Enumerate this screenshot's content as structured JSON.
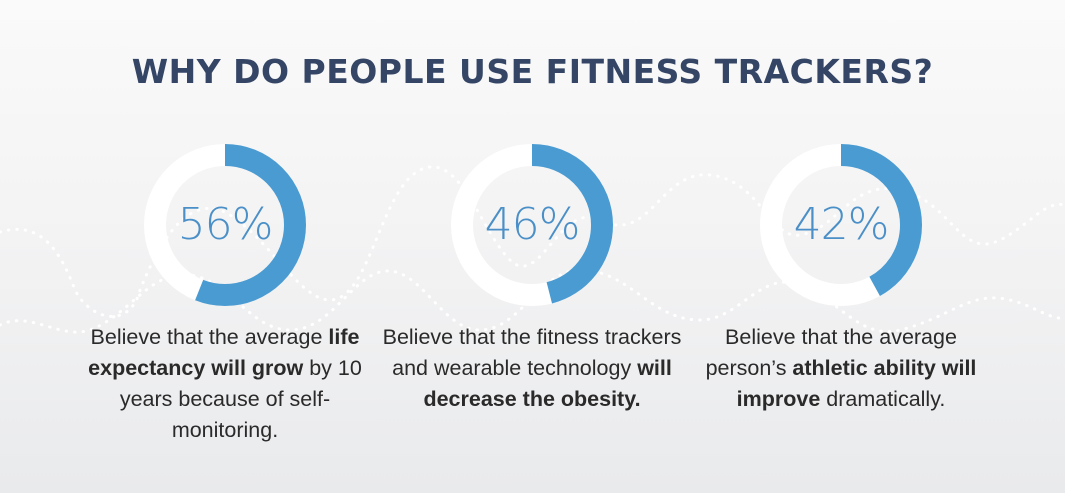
{
  "title": "WHY DO PEOPLE USE FITNESS TRACKERS?",
  "colors": {
    "title": "#344565",
    "ring_track": "#ffffff",
    "ring_fill": "#4a9bd1",
    "percent_text": "#4a8fc7",
    "body_text": "#2a2a2a",
    "background": "#f2f2f3"
  },
  "stats": [
    {
      "label": "56%",
      "desc": [
        {
          "t": "Believe that the average ",
          "b": false
        },
        {
          "t": "life expectancy will grow",
          "b": true
        },
        {
          "t": " by 10 years because of self-monitoring.",
          "b": false
        }
      ]
    },
    {
      "label": "46%",
      "desc": [
        {
          "t": "Believe that the fitness trackers and wearable technology ",
          "b": false
        },
        {
          "t": "will decrease the obesity.",
          "b": true
        }
      ]
    },
    {
      "label": "42%",
      "desc": [
        {
          "t": "Believe that the average person’s ",
          "b": false
        },
        {
          "t": "athletic ability will improve",
          "b": true
        },
        {
          "t": " dramatically.",
          "b": false
        }
      ]
    }
  ],
  "chart_data": {
    "type": "pie",
    "title": "WHY DO PEOPLE USE FITNESS TRACKERS?",
    "categories": [
      "56%",
      "46%",
      "42%"
    ],
    "values": [
      56,
      46,
      42
    ],
    "unit": "%",
    "style": "donut"
  }
}
